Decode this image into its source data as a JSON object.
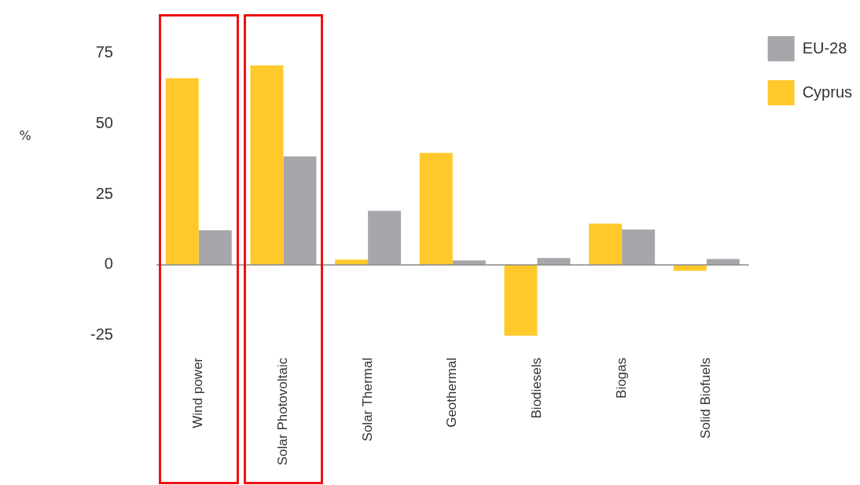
{
  "chart_data": {
    "type": "bar",
    "ylabel": "%",
    "categories": [
      "Wind power",
      "Solar Photovoltaic",
      "Solar Thermal",
      "Geothermal",
      "Biodiesels",
      "Biogas",
      "Solid Biofuels"
    ],
    "series": [
      {
        "name": "Cyprus",
        "color": "#ffc92c",
        "values": [
          66,
          70.5,
          1.9,
          39.6,
          -25,
          14.6,
          -2.1
        ]
      },
      {
        "name": "EU-28",
        "color": "#a6a6ab",
        "values": [
          12.2,
          38.3,
          19.1,
          1.6,
          2.4,
          12.5,
          2.1
        ]
      }
    ],
    "ylim": [
      -25,
      75
    ],
    "yticks": [
      -25,
      0,
      25,
      50,
      75
    ],
    "grid": false,
    "ref_lines": [
      {
        "axis": "y",
        "value": 0,
        "color": "#888888"
      }
    ],
    "legend": "top right"
  }
}
